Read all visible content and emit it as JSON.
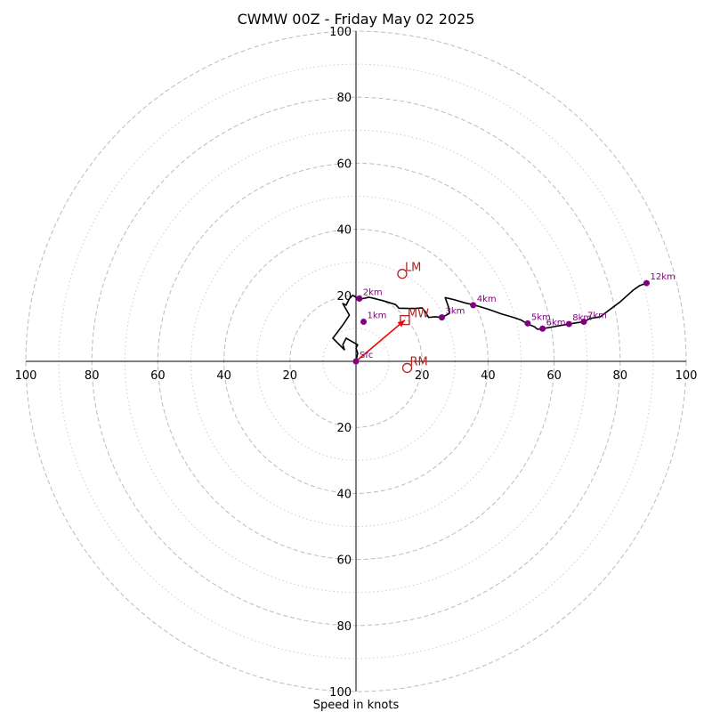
{
  "chart_data": {
    "type": "hodograph",
    "title": "CWMW 00Z - Friday May 02 2025",
    "xlabel": "Speed in knots",
    "units": "knots",
    "range": [
      -100,
      100
    ],
    "ring_major": [
      20,
      40,
      60,
      80,
      100
    ],
    "ring_minor": [
      10,
      30,
      50,
      70,
      90
    ],
    "ticks": {
      "x": [
        {
          "v": -100,
          "label": "100"
        },
        {
          "v": -80,
          "label": "80"
        },
        {
          "v": -60,
          "label": "60"
        },
        {
          "v": -40,
          "label": "40"
        },
        {
          "v": -20,
          "label": "20"
        },
        {
          "v": 20,
          "label": "20"
        },
        {
          "v": 40,
          "label": "40"
        },
        {
          "v": 60,
          "label": "60"
        },
        {
          "v": 80,
          "label": "80"
        },
        {
          "v": 100,
          "label": "100"
        }
      ],
      "y": [
        {
          "v": 100,
          "label": "100"
        },
        {
          "v": 80,
          "label": "80"
        },
        {
          "v": 60,
          "label": "60"
        },
        {
          "v": 40,
          "label": "40"
        },
        {
          "v": 20,
          "label": "20"
        },
        {
          "v": -20,
          "label": "20"
        },
        {
          "v": -40,
          "label": "40"
        },
        {
          "v": -60,
          "label": "60"
        },
        {
          "v": -80,
          "label": "80"
        },
        {
          "v": -100,
          "label": "100"
        }
      ]
    },
    "trace": [
      [
        0,
        0
      ],
      [
        0.5,
        2.5
      ],
      [
        0,
        4
      ],
      [
        0.5,
        5
      ],
      [
        -3,
        7
      ],
      [
        -4,
        5
      ],
      [
        -3.5,
        3.5
      ],
      [
        -7,
        7
      ],
      [
        -4,
        11
      ],
      [
        -2,
        14
      ],
      [
        -4,
        17.5
      ],
      [
        -3,
        17
      ],
      [
        -2,
        19
      ],
      [
        -1,
        20
      ],
      [
        1,
        18.8
      ],
      [
        4,
        19.4
      ],
      [
        8,
        18.4
      ],
      [
        12,
        17.2
      ],
      [
        13,
        16.1
      ],
      [
        16,
        16
      ],
      [
        18,
        16
      ],
      [
        20,
        16.2
      ],
      [
        21,
        15
      ],
      [
        22,
        13.3
      ],
      [
        24,
        13.5
      ],
      [
        26,
        13.3
      ],
      [
        28.3,
        14.5
      ],
      [
        28,
        16.5
      ],
      [
        27,
        19.3
      ],
      [
        30,
        18.6
      ],
      [
        33,
        17.7
      ],
      [
        36,
        17
      ],
      [
        40,
        15.8
      ],
      [
        44,
        14.4
      ],
      [
        48,
        13.2
      ],
      [
        50,
        12.5
      ],
      [
        52,
        11.3
      ],
      [
        54,
        10.5
      ],
      [
        55,
        9.7
      ],
      [
        56.5,
        9.9
      ],
      [
        60,
        10.5
      ],
      [
        64.5,
        11.3
      ],
      [
        67,
        11.7
      ],
      [
        69,
        12
      ],
      [
        71,
        13
      ],
      [
        74,
        13.5
      ],
      [
        80,
        18
      ],
      [
        84,
        21.6
      ],
      [
        86,
        23
      ],
      [
        88,
        23.7
      ]
    ],
    "height_markers": [
      {
        "label": "Sfc",
        "u": 0,
        "v": 0
      },
      {
        "label": "1km",
        "u": 2.3,
        "v": 12
      },
      {
        "label": "2km",
        "u": 1,
        "v": 19
      },
      {
        "label": "3km",
        "u": 26,
        "v": 13.3
      },
      {
        "label": "4km",
        "u": 35.5,
        "v": 17
      },
      {
        "label": "5km",
        "u": 52,
        "v": 11.5
      },
      {
        "label": "6km",
        "u": 56.5,
        "v": 9.9
      },
      {
        "label": "7km",
        "u": 69,
        "v": 12
      },
      {
        "label": "8km",
        "u": 64.5,
        "v": 11.3
      },
      {
        "label": "12km",
        "u": 88,
        "v": 23.7
      }
    ],
    "storm_motion": [
      {
        "label": "LM",
        "u": 14,
        "v": 26.5,
        "symbol": "circle"
      },
      {
        "label": "MW",
        "u": 14.8,
        "v": 12.5,
        "symbol": "square"
      },
      {
        "label": "RM",
        "u": 15.5,
        "v": -2,
        "symbol": "circle"
      }
    ],
    "mean_wind_vector": {
      "u": 14.8,
      "v": 12.5
    },
    "colors": {
      "trace": "#000000",
      "markers": "#800080",
      "storm_motion": "#b22222",
      "vector": "#ff0000",
      "grid": "#bbbbbb",
      "axes": "#000000"
    }
  }
}
